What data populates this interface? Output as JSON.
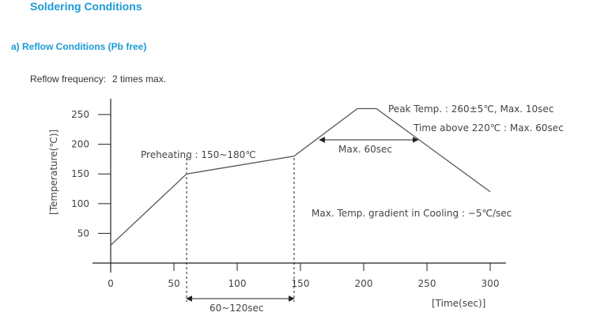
{
  "page": {
    "title": "Soldering Conditions",
    "subhead": "a)  Reflow Conditions (Pb free)",
    "frequency_label": "Reflow frequency:",
    "frequency_value": "2 times max.",
    "accent_color": "#1c9ad6"
  },
  "chart_data": {
    "type": "line",
    "xlabel": "[Time(sec)]",
    "ylabel": "[Temperature(℃)]",
    "xlim": [
      0,
      300
    ],
    "ylim": [
      0,
      270
    ],
    "x_ticks": [
      0,
      50,
      100,
      150,
      200,
      250,
      300
    ],
    "y_ticks": [
      50,
      100,
      150,
      200,
      250
    ],
    "grid": false,
    "series": [
      {
        "x": [
          0,
          60,
          145,
          195,
          210,
          300
        ],
        "y": [
          30,
          150,
          180,
          260,
          260,
          120
        ]
      }
    ],
    "reference_lines_x": [
      60,
      145
    ],
    "annotations": {
      "preheating": "Preheating : 150~180℃",
      "peak": "Peak Temp. : 260±5℃,  Max. 10sec",
      "time_above": "Time above 220℃ : Max. 60sec",
      "max60": "Max. 60sec",
      "cooling": "Max. Temp. gradient in Cooling : −5℃/sec",
      "preheat_duration": "60~120sec"
    },
    "max60_span_x": [
      165,
      243
    ],
    "preheat_span_x": [
      60,
      145
    ],
    "line_color": "#555555"
  }
}
